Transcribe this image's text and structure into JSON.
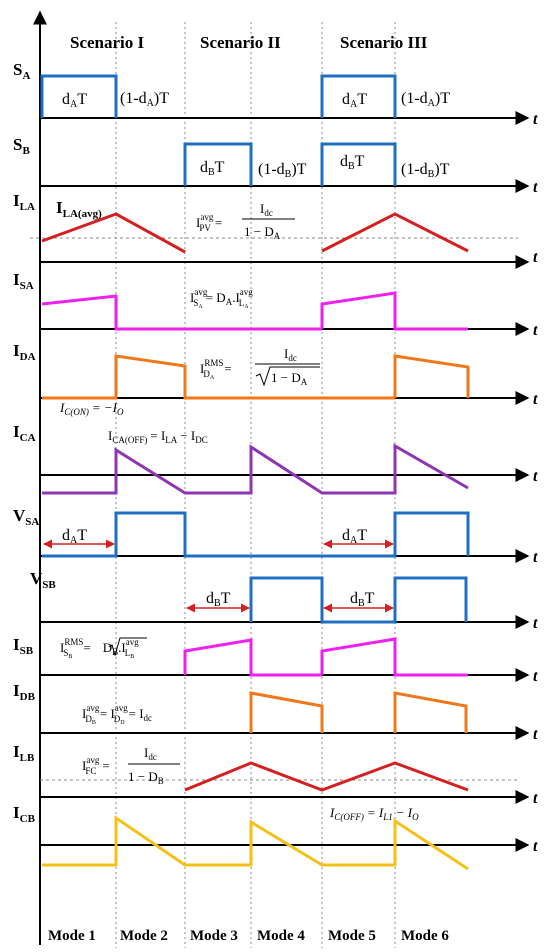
{
  "scenarios": [
    "Scenario I",
    "Scenario II",
    "Scenario III"
  ],
  "modes": [
    "Mode 1",
    "Mode 2",
    "Mode 3",
    "Mode 4",
    "Mode 5",
    "Mode 6"
  ],
  "axis_t": "t",
  "signals": {
    "sa": {
      "main": "S",
      "sub": "A"
    },
    "sb": {
      "main": "S",
      "sub": "B"
    },
    "ila": {
      "main": "I",
      "sub": "LA"
    },
    "isa": {
      "main": "I",
      "sub": "SA"
    },
    "ida": {
      "main": "I",
      "sub": "DA"
    },
    "ica": {
      "main": "I",
      "sub": "CA"
    },
    "vsa": {
      "main": "V",
      "sub": "SA"
    },
    "vsb": {
      "main": "V",
      "sub": "SB"
    },
    "isb": {
      "main": "I",
      "sub": "SB"
    },
    "idb": {
      "main": "I",
      "sub": "DB"
    },
    "ilb": {
      "main": "I",
      "sub": "LB"
    },
    "icb": {
      "main": "I",
      "sub": "CB"
    }
  },
  "duty": {
    "da_t_d": "d",
    "da_t_sub": "A",
    "da_t_T": "T",
    "db_t_d": "d",
    "db_t_sub": "B",
    "db_t_T": "T",
    "one_minus_da_a": "(1-d",
    "one_minus_da_sub": "A",
    "one_minus_da_b": ")T",
    "one_minus_db_a": "(1-d",
    "one_minus_db_sub": "B",
    "one_minus_db_b": ")T"
  },
  "labels": {
    "ila_avg_main": "I",
    "ila_avg_sub": "LA(avg)",
    "ipv_lhs": "I",
    "ipv_sup": "avg",
    "ipv_sub": "PV",
    "ipv_num": "I",
    "ipv_num_sub": "dc",
    "ipv_den": "1 − D",
    "ipv_den_sub": "A",
    "isa_lhs": "I",
    "isa_sup": "avg",
    "isa_sub": "S",
    "isa_sub2": "A",
    "isa_rhs": "= D",
    "isa_rhs_sub": "A",
    "isa_rhs2": ".I",
    "isa_rhs2_sup": "avg",
    "isa_rhs2_sub": "L",
    "isa_rhs2_sub2": "A",
    "ida_lhs": "I",
    "ida_sup": "RMS",
    "ida_sub": "D",
    "ida_sub2": "A",
    "ida_num": "I",
    "ida_num_sub": "dc",
    "ida_den": "1 − D",
    "ida_den_sub": "A",
    "icon_lhs": "I",
    "icon_sub": "C(ON)",
    "icon_rhs": "= −I",
    "icon_rhs_sub": "O",
    "icaoff_lhs": "I",
    "icaoff_sub": "CA(OFF)",
    "icaoff_rhs": "= I",
    "icaoff_rhs_sub": "LA",
    "icaoff_rhs2": "− I",
    "icaoff_rhs2_sub": "DC",
    "isb_lhs": "I",
    "isb_sup": "RMS",
    "isb_sub": "S",
    "isb_sub2": "B",
    "isb_eq": "=",
    "isb_rhs": "D",
    "isb_rhs_sub": "B",
    "isb_rhs2": ".I",
    "isb_rhs2_sup": "avg",
    "isb_rhs2_sub": "L",
    "isb_rhs2_sub2": "B",
    "idb_lhs": "I",
    "idb_sup": "avg",
    "idb_sub": "D",
    "idb_sub2": "B",
    "idb_mid": "= I",
    "idb_mid_sup": "avg",
    "idb_mid_sub": "D",
    "idb_mid_sub2": "D",
    "idb_rhs": "= I",
    "idb_rhs_sub": "dc",
    "ifc_lhs": "I",
    "ifc_sup": "avg",
    "ifc_sub": "FC",
    "ifc_num": "I",
    "ifc_num_sub": "dc",
    "ifc_den": "1 − D",
    "ifc_den_sub": "B",
    "icoff_lhs": "I",
    "icoff_sub": "C(OFF)",
    "icoff_rhs": "= I",
    "icoff_rhs_sub": "L1",
    "icoff_rhs2": "− I",
    "icoff_rhs2_sub": "O"
  },
  "colors": {
    "axis": "#000000",
    "switch": "#1f6fc1",
    "inductor": "#d42020",
    "switch_current": "#ee20ee",
    "diode": "#f07818",
    "capacitor_a": "#8d35b3",
    "capacitor_b": "#f5c017",
    "arrow": "#d42020",
    "guide": "#888888"
  }
}
